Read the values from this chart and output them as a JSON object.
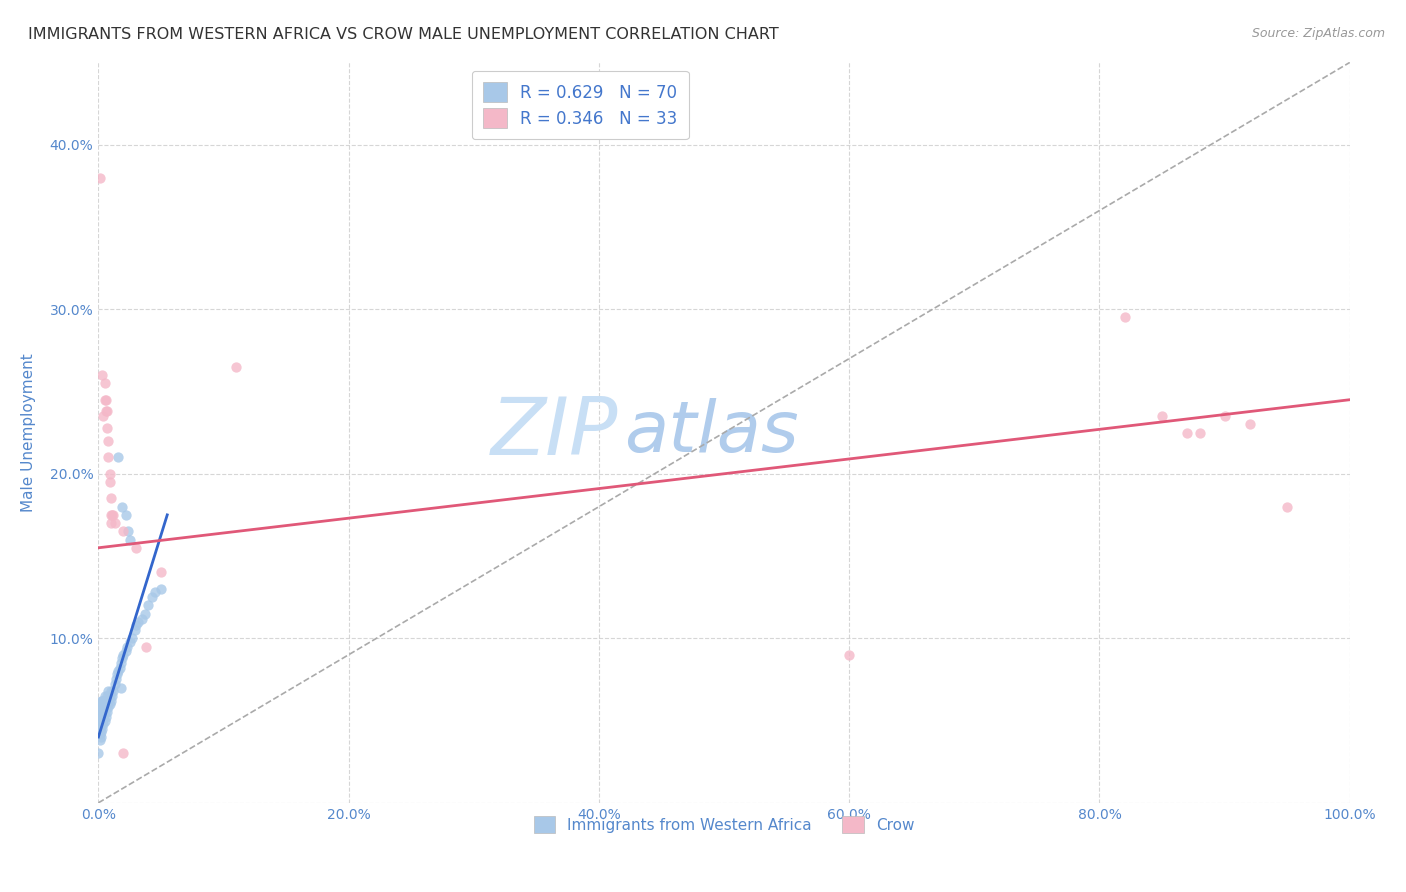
{
  "title": "IMMIGRANTS FROM WESTERN AFRICA VS CROW MALE UNEMPLOYMENT CORRELATION CHART",
  "source": "Source: ZipAtlas.com",
  "ylabel": "Male Unemployment",
  "legend_label1": "Immigrants from Western Africa",
  "legend_label2": "Crow",
  "r1": 0.629,
  "n1": 70,
  "r2": 0.346,
  "n2": 33,
  "blue_color": "#a8c8e8",
  "pink_color": "#f4b8c8",
  "blue_line_color": "#3366cc",
  "pink_line_color": "#e05878",
  "gray_dash_color": "#aaaaaa",
  "watermark_zip_color": "#c8dff0",
  "watermark_atlas_color": "#b8d0e8",
  "axis_color": "#5588cc",
  "legend_text_color": "#4477cc",
  "blue_scatter": [
    [
      0.0,
      0.03
    ],
    [
      0.001,
      0.038
    ],
    [
      0.001,
      0.042
    ],
    [
      0.001,
      0.045
    ],
    [
      0.001,
      0.048
    ],
    [
      0.001,
      0.052
    ],
    [
      0.001,
      0.055
    ],
    [
      0.001,
      0.058
    ],
    [
      0.002,
      0.04
    ],
    [
      0.002,
      0.043
    ],
    [
      0.002,
      0.048
    ],
    [
      0.002,
      0.052
    ],
    [
      0.002,
      0.055
    ],
    [
      0.002,
      0.058
    ],
    [
      0.002,
      0.062
    ],
    [
      0.003,
      0.045
    ],
    [
      0.003,
      0.05
    ],
    [
      0.003,
      0.053
    ],
    [
      0.003,
      0.058
    ],
    [
      0.003,
      0.062
    ],
    [
      0.004,
      0.048
    ],
    [
      0.004,
      0.052
    ],
    [
      0.004,
      0.058
    ],
    [
      0.004,
      0.062
    ],
    [
      0.005,
      0.05
    ],
    [
      0.005,
      0.055
    ],
    [
      0.005,
      0.06
    ],
    [
      0.005,
      0.065
    ],
    [
      0.006,
      0.052
    ],
    [
      0.006,
      0.058
    ],
    [
      0.006,
      0.062
    ],
    [
      0.007,
      0.055
    ],
    [
      0.007,
      0.06
    ],
    [
      0.007,
      0.065
    ],
    [
      0.008,
      0.058
    ],
    [
      0.008,
      0.062
    ],
    [
      0.008,
      0.068
    ],
    [
      0.009,
      0.06
    ],
    [
      0.009,
      0.065
    ],
    [
      0.01,
      0.062
    ],
    [
      0.01,
      0.068
    ],
    [
      0.011,
      0.065
    ],
    [
      0.012,
      0.068
    ],
    [
      0.013,
      0.072
    ],
    [
      0.014,
      0.075
    ],
    [
      0.015,
      0.078
    ],
    [
      0.016,
      0.08
    ],
    [
      0.017,
      0.082
    ],
    [
      0.018,
      0.085
    ],
    [
      0.019,
      0.088
    ],
    [
      0.02,
      0.09
    ],
    [
      0.022,
      0.092
    ],
    [
      0.023,
      0.095
    ],
    [
      0.025,
      0.098
    ],
    [
      0.027,
      0.1
    ],
    [
      0.029,
      0.105
    ],
    [
      0.03,
      0.108
    ],
    [
      0.032,
      0.11
    ],
    [
      0.035,
      0.112
    ],
    [
      0.037,
      0.115
    ],
    [
      0.04,
      0.12
    ],
    [
      0.043,
      0.125
    ],
    [
      0.045,
      0.128
    ],
    [
      0.05,
      0.13
    ],
    [
      0.016,
      0.21
    ],
    [
      0.019,
      0.18
    ],
    [
      0.022,
      0.175
    ],
    [
      0.024,
      0.165
    ],
    [
      0.025,
      0.16
    ],
    [
      0.018,
      0.07
    ]
  ],
  "pink_scatter": [
    [
      0.001,
      0.38
    ],
    [
      0.003,
      0.26
    ],
    [
      0.004,
      0.235
    ],
    [
      0.005,
      0.255
    ],
    [
      0.005,
      0.245
    ],
    [
      0.006,
      0.245
    ],
    [
      0.006,
      0.238
    ],
    [
      0.007,
      0.228
    ],
    [
      0.007,
      0.238
    ],
    [
      0.008,
      0.22
    ],
    [
      0.008,
      0.21
    ],
    [
      0.009,
      0.2
    ],
    [
      0.009,
      0.195
    ],
    [
      0.01,
      0.185
    ],
    [
      0.01,
      0.175
    ],
    [
      0.01,
      0.17
    ],
    [
      0.011,
      0.175
    ],
    [
      0.012,
      0.175
    ],
    [
      0.013,
      0.17
    ],
    [
      0.02,
      0.165
    ],
    [
      0.03,
      0.155
    ],
    [
      0.038,
      0.095
    ],
    [
      0.05,
      0.14
    ],
    [
      0.11,
      0.265
    ],
    [
      0.6,
      0.09
    ],
    [
      0.82,
      0.295
    ],
    [
      0.85,
      0.235
    ],
    [
      0.87,
      0.225
    ],
    [
      0.88,
      0.225
    ],
    [
      0.9,
      0.235
    ],
    [
      0.92,
      0.23
    ],
    [
      0.95,
      0.18
    ],
    [
      0.02,
      0.03
    ]
  ],
  "blue_line": [
    [
      0.0,
      0.04
    ],
    [
      0.055,
      0.175
    ]
  ],
  "pink_line": [
    [
      0.0,
      0.155
    ],
    [
      1.0,
      0.245
    ]
  ],
  "diag_line": [
    [
      0.0,
      0.0
    ],
    [
      1.0,
      0.45
    ]
  ],
  "xlim": [
    0.0,
    1.0
  ],
  "ylim": [
    0.0,
    0.45
  ],
  "xticks": [
    0.0,
    0.2,
    0.4,
    0.6,
    0.8,
    1.0
  ],
  "yticks": [
    0.0,
    0.1,
    0.2,
    0.3,
    0.4
  ],
  "xticklabels": [
    "0.0%",
    "20.0%",
    "40.0%",
    "60.0%",
    "80.0%",
    "100.0%"
  ],
  "yticklabels": [
    "",
    "10.0%",
    "20.0%",
    "30.0%",
    "40.0%"
  ]
}
